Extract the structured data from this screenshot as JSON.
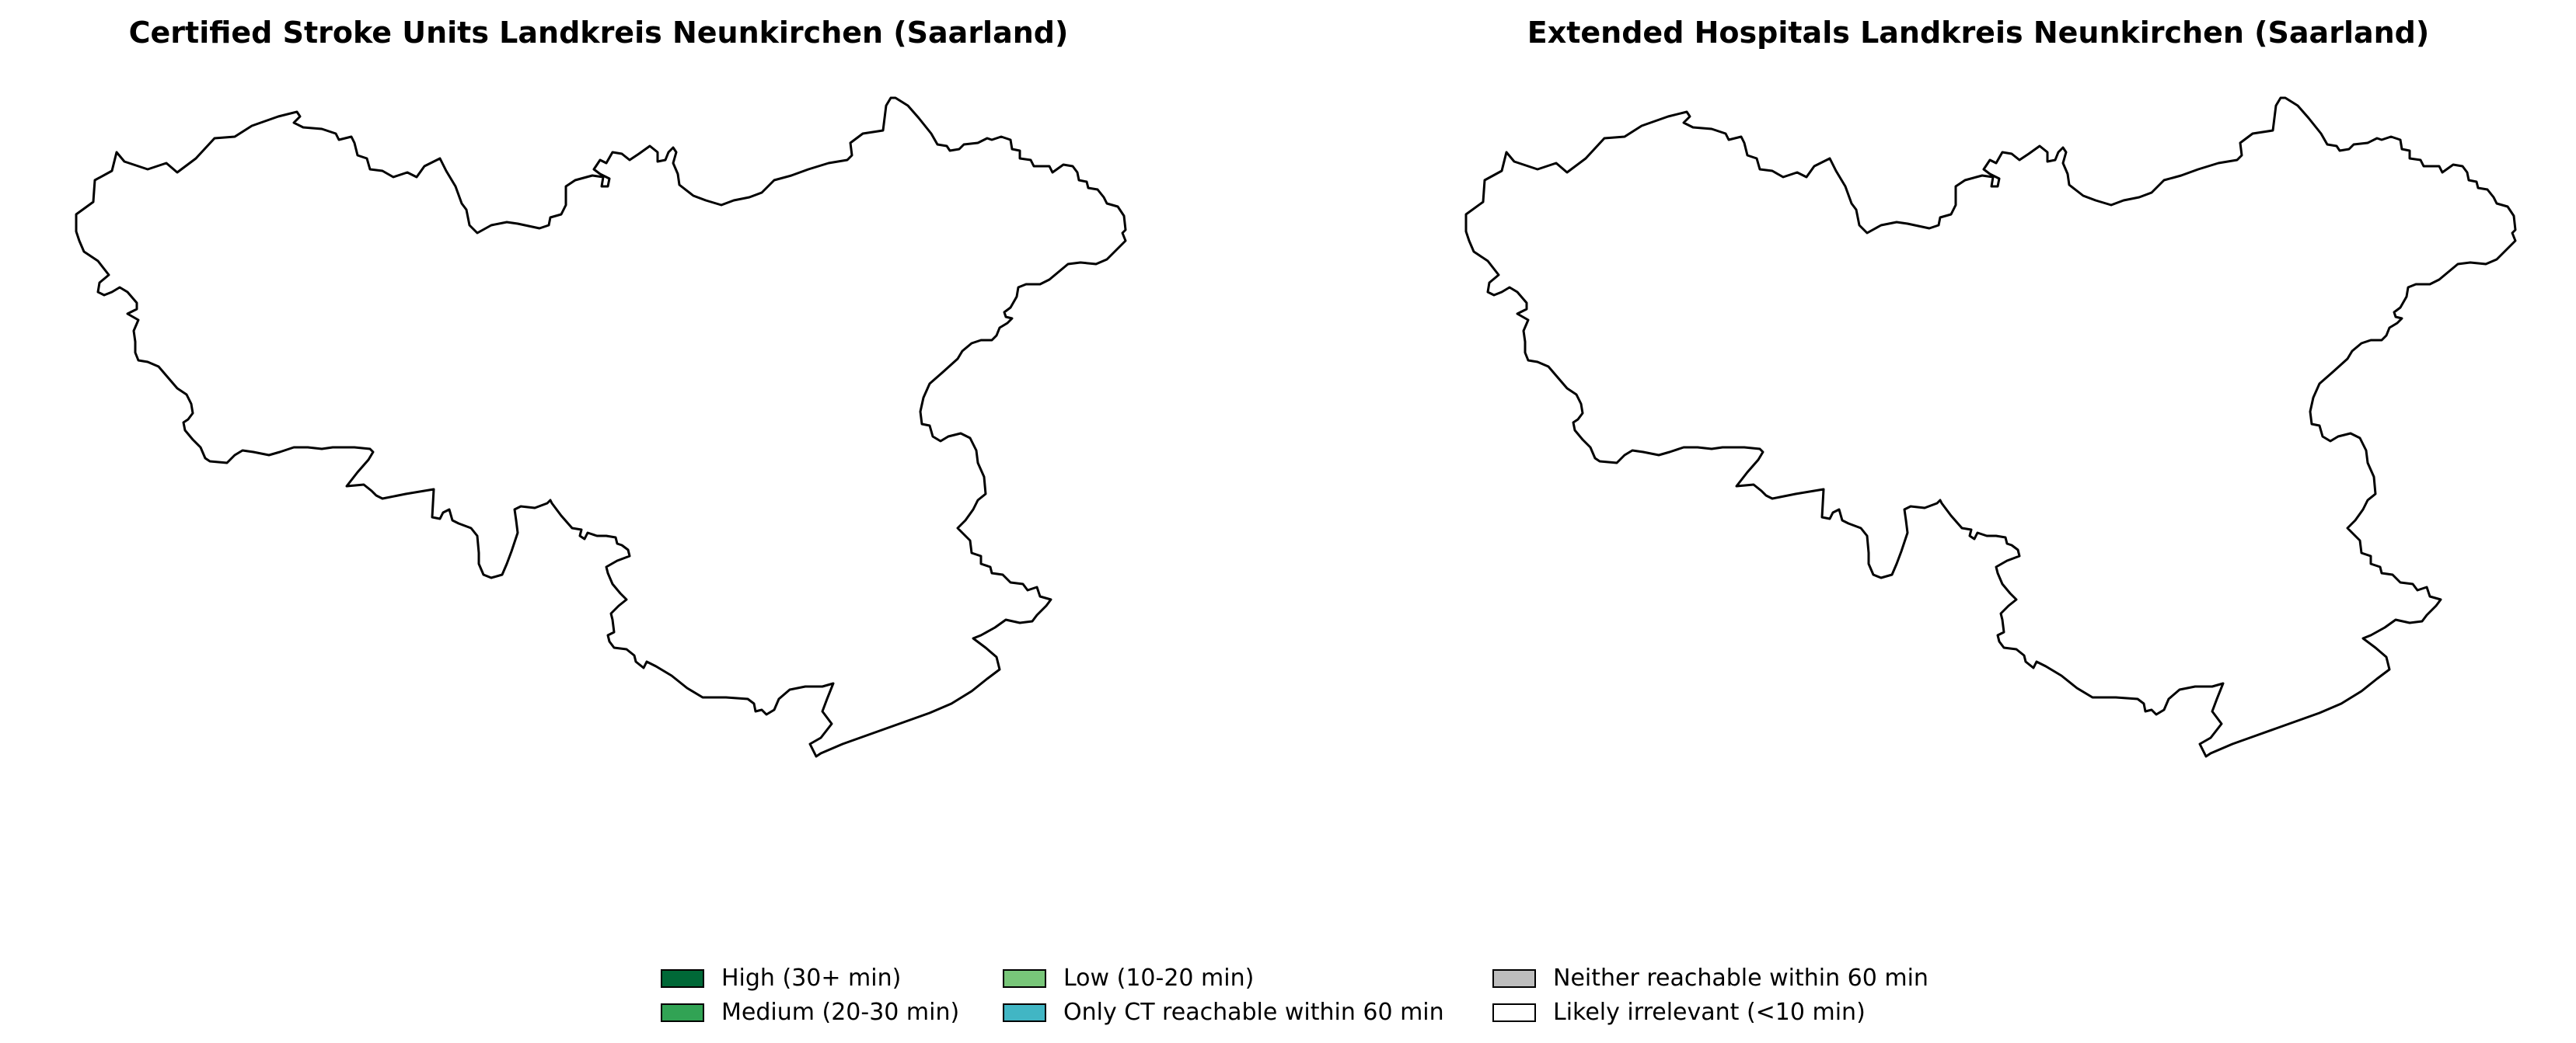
{
  "maps": [
    {
      "title": "Certified Stroke Units Landkreis Neunkirchen (Saarland)"
    },
    {
      "title": "Extended Hospitals Landkreis Neunkirchen (Saarland)"
    }
  ],
  "legend": {
    "items": [
      {
        "label": "High (30+ min)",
        "color": "#006837"
      },
      {
        "label": "Medium (20-30 min)",
        "color": "#31a354"
      },
      {
        "label": "Low (10-20 min)",
        "color": "#78c679"
      },
      {
        "label": "Only CT reachable within 60 min",
        "color": "#41b6c4"
      },
      {
        "label": "Neither reachable within 60 min",
        "color": "#bdbdbd"
      },
      {
        "label": "Likely irrelevant (<10 min)",
        "color": "#ffffff"
      }
    ]
  },
  "colors": {
    "outline": "#000000",
    "background": "#ffffff"
  }
}
